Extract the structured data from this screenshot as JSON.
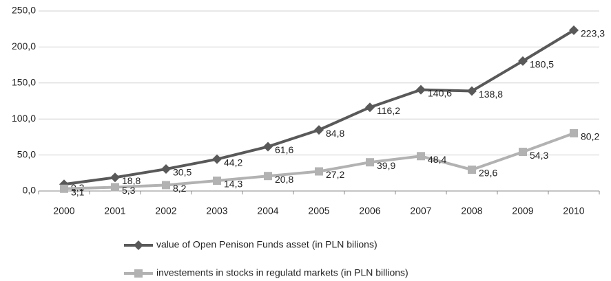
{
  "chart_data": {
    "type": "line",
    "categories": [
      "2000",
      "2001",
      "2002",
      "2003",
      "2004",
      "2005",
      "2006",
      "2007",
      "2008",
      "2009",
      "2010"
    ],
    "series": [
      {
        "name": "value of Open Penison Funds asset (in PLN bilions)",
        "color": "#595959",
        "marker": "diamond",
        "values": [
          9.3,
          18.8,
          30.5,
          44.2,
          61.6,
          84.8,
          116.2,
          140.6,
          138.8,
          180.5,
          223.3
        ],
        "value_labels": [
          "9,3",
          "18,8",
          "30,5",
          "44,2",
          "61,6",
          "84,8",
          "116,2",
          "140,6",
          "138,8",
          "180,5",
          "223,3"
        ]
      },
      {
        "name": "investements in stocks in regulatd markets (in PLN billions)",
        "color": "#b2b2b2",
        "marker": "square",
        "values": [
          3.1,
          5.3,
          8.2,
          14.3,
          20.8,
          27.2,
          39.9,
          48.4,
          29.6,
          54.3,
          80.2
        ],
        "value_labels": [
          "3,1",
          "5,3",
          "8,2",
          "14,3",
          "20,8",
          "27,2",
          "39,9",
          "48,4",
          "29,6",
          "54,3",
          "80,2"
        ]
      }
    ],
    "ylim": [
      0,
      250
    ],
    "yticks": [
      {
        "value": 0,
        "label": "0,0"
      },
      {
        "value": 50,
        "label": "50,0"
      },
      {
        "value": 100,
        "label": "100,0"
      },
      {
        "value": 150,
        "label": "150,0"
      },
      {
        "value": 200,
        "label": "200,0"
      },
      {
        "value": 250,
        "label": "250,0"
      }
    ],
    "grid": true,
    "legend": "bottom"
  }
}
